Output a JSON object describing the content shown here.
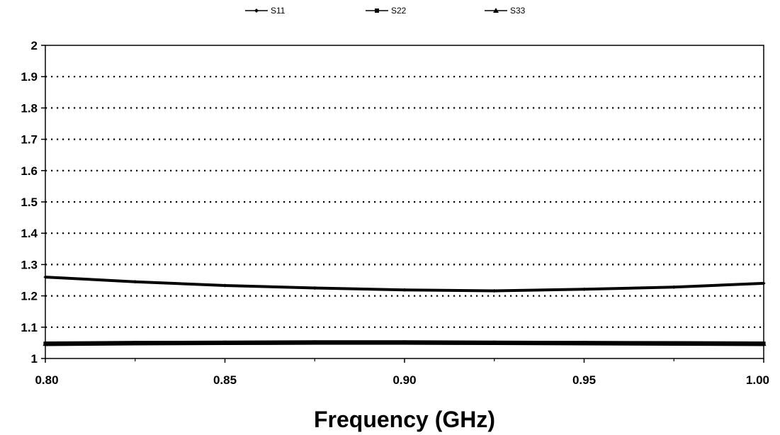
{
  "chart_data": {
    "type": "line",
    "title": "",
    "xlabel": "Frequency (GHz)",
    "ylabel": "",
    "xlim": [
      0.8,
      1.0
    ],
    "ylim": [
      1,
      2
    ],
    "x_ticks": [
      "0.80",
      "0.85",
      "0.90",
      "0.95",
      "1.00"
    ],
    "y_ticks": [
      "1",
      "1.1",
      "1.2",
      "1.3",
      "1.4",
      "1.5",
      "1.6",
      "1.7",
      "1.8",
      "1.9",
      "2"
    ],
    "grid": "horizontal-dotted",
    "legend_position": "top",
    "x": [
      0.8,
      0.825,
      0.85,
      0.875,
      0.9,
      0.925,
      0.95,
      0.975,
      1.0
    ],
    "series": [
      {
        "name": "S11",
        "marker": "diamond",
        "values": [
          1.26,
          1.245,
          1.233,
          1.225,
          1.219,
          1.216,
          1.221,
          1.228,
          1.24
        ]
      },
      {
        "name": "S22",
        "marker": "square",
        "values": [
          1.048,
          1.05,
          1.051,
          1.052,
          1.052,
          1.051,
          1.05,
          1.049,
          1.048
        ]
      },
      {
        "name": "S33",
        "marker": "triangle",
        "values": [
          1.046,
          1.048,
          1.049,
          1.05,
          1.05,
          1.049,
          1.048,
          1.047,
          1.046
        ]
      }
    ],
    "colors": {
      "line": "#000000",
      "grid": "#000000",
      "background": "#ffffff"
    }
  }
}
